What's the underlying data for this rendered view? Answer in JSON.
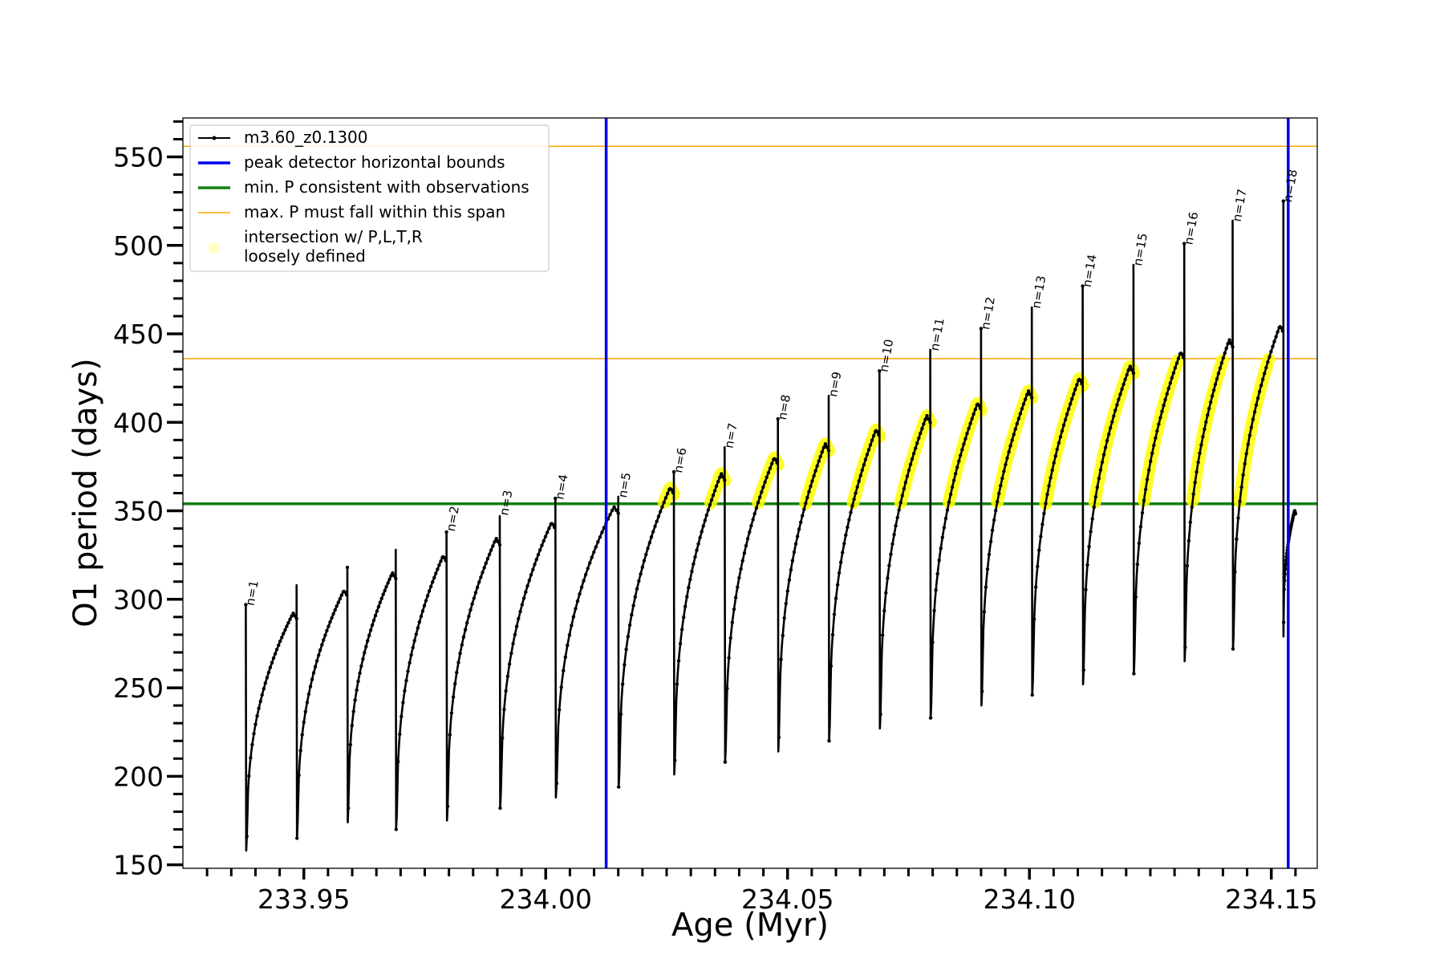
{
  "chart_data": {
    "type": "line",
    "xlabel": "Age (Myr)",
    "ylabel": "O1 period (days)",
    "xlim": [
      233.925,
      234.1595
    ],
    "ylim": [
      148,
      572
    ],
    "x_ticks": [
      233.95,
      234.0,
      234.05,
      234.1,
      234.15
    ],
    "x_tick_labels": [
      "233.95",
      "234.00",
      "234.05",
      "234.10",
      "234.15"
    ],
    "y_ticks": [
      150,
      200,
      250,
      300,
      350,
      400,
      450,
      500,
      550
    ],
    "y_tick_labels": [
      "150",
      "200",
      "250",
      "300",
      "350",
      "400",
      "450",
      "500",
      "550"
    ],
    "grid": false,
    "legend_position": "top-left",
    "legend": [
      {
        "label": "m3.60_z0.1300",
        "kind": "line-marker",
        "color": "#000000"
      },
      {
        "label": "peak detector horizontal bounds",
        "kind": "line",
        "color": "#0000ee"
      },
      {
        "label": "min. P consistent with observations",
        "kind": "line",
        "color": "#108010"
      },
      {
        "label": "max. P must fall within this span",
        "kind": "line-thin",
        "color": "#ffa500"
      },
      {
        "label": "intersection w/ P,L,T,R",
        "label2": "loosely defined",
        "kind": "marker",
        "color": "#ffff00"
      }
    ],
    "vertical_lines": [
      {
        "name": "peak detector horizontal bounds",
        "x": [
          234.0125,
          234.1535
        ],
        "color": "#0000ee"
      }
    ],
    "horizontal_lines": [
      {
        "name": "min. P consistent with observations",
        "y": 354,
        "color": "#108010"
      },
      {
        "name": "max. P must fall within this span",
        "y": [
          436,
          556
        ],
        "color": "#ffa500"
      }
    ],
    "series": [
      {
        "name": "m3.60_z0.1300",
        "color": "#000000",
        "cycles": [
          {
            "start": 233.938,
            "end": 233.9485,
            "min": 158,
            "peak": 296,
            "spike": 297
          },
          {
            "start": 233.9485,
            "end": 233.959,
            "min": 165,
            "peak": 309,
            "spike": 308
          },
          {
            "start": 233.959,
            "end": 233.969,
            "min": 174,
            "peak": 319,
            "spike": 318
          },
          {
            "start": 233.969,
            "end": 233.9795,
            "min": 170,
            "peak": 329,
            "spike": 328
          },
          {
            "start": 233.9795,
            "end": 233.9905,
            "min": 175,
            "peak": 339,
            "spike": 338
          },
          {
            "start": 233.9905,
            "end": 234.002,
            "min": 182,
            "peak": 348,
            "spike": 347
          },
          {
            "start": 234.002,
            "end": 234.015,
            "min": 188,
            "peak": 357,
            "spike": 357
          },
          {
            "start": 234.015,
            "end": 234.0265,
            "min": 194,
            "peak": 368,
            "spike": 358
          },
          {
            "start": 234.0265,
            "end": 234.037,
            "min": 201,
            "peak": 376,
            "spike": 372
          },
          {
            "start": 234.037,
            "end": 234.048,
            "min": 208,
            "peak": 385,
            "spike": 386
          },
          {
            "start": 234.048,
            "end": 234.0585,
            "min": 214,
            "peak": 393,
            "spike": 402
          },
          {
            "start": 234.0585,
            "end": 234.069,
            "min": 220,
            "peak": 401,
            "spike": 415
          },
          {
            "start": 234.069,
            "end": 234.0795,
            "min": 227,
            "peak": 409,
            "spike": 429
          },
          {
            "start": 234.0795,
            "end": 234.09,
            "min": 233,
            "peak": 416,
            "spike": 441
          },
          {
            "start": 234.09,
            "end": 234.1005,
            "min": 240,
            "peak": 423,
            "spike": 453
          },
          {
            "start": 234.1005,
            "end": 234.111,
            "min": 246,
            "peak": 430,
            "spike": 465
          },
          {
            "start": 234.111,
            "end": 234.1215,
            "min": 252,
            "peak": 437,
            "spike": 477
          },
          {
            "start": 234.1215,
            "end": 234.132,
            "min": 258,
            "peak": 445,
            "spike": 489
          },
          {
            "start": 234.132,
            "end": 234.142,
            "min": 265,
            "peak": 452,
            "spike": 501
          },
          {
            "start": 234.142,
            "end": 234.1525,
            "min": 272,
            "peak": 460,
            "spike": 514
          },
          {
            "start": 234.1525,
            "end": 234.155,
            "min": 279,
            "peak": 352,
            "spike": 525
          }
        ]
      }
    ],
    "highlight": {
      "name": "intersection w/ P,L,T,R loosely defined",
      "color": "#ffff00",
      "y_range": [
        354,
        436
      ]
    },
    "annotations": [
      {
        "text": "n=1",
        "x": 233.938,
        "y": 297
      },
      {
        "text": "n=2",
        "x": 233.9795,
        "y": 339
      },
      {
        "text": "n=3",
        "x": 233.9905,
        "y": 348
      },
      {
        "text": "n=4",
        "x": 234.002,
        "y": 357
      },
      {
        "text": "n=5",
        "x": 234.015,
        "y": 358
      },
      {
        "text": "n=6",
        "x": 234.0265,
        "y": 372
      },
      {
        "text": "n=7",
        "x": 234.037,
        "y": 386
      },
      {
        "text": "n=8",
        "x": 234.048,
        "y": 402
      },
      {
        "text": "n=9",
        "x": 234.0585,
        "y": 415
      },
      {
        "text": "n=10",
        "x": 234.069,
        "y": 429
      },
      {
        "text": "n=11",
        "x": 234.0795,
        "y": 441
      },
      {
        "text": "n=12",
        "x": 234.09,
        "y": 453
      },
      {
        "text": "n=13",
        "x": 234.1005,
        "y": 465
      },
      {
        "text": "n=14",
        "x": 234.111,
        "y": 477
      },
      {
        "text": "n=15",
        "x": 234.1215,
        "y": 489
      },
      {
        "text": "n=16",
        "x": 234.132,
        "y": 501
      },
      {
        "text": "n=17",
        "x": 234.142,
        "y": 514
      },
      {
        "text": "n=18",
        "x": 234.1525,
        "y": 525
      }
    ]
  }
}
